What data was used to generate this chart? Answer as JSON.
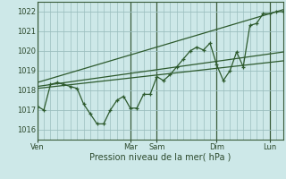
{
  "xlabel": "Pression niveau de la mer( hPa )",
  "ylim": [
    1015.5,
    1022.5
  ],
  "yticks": [
    1016,
    1017,
    1018,
    1019,
    1020,
    1021,
    1022
  ],
  "background_color": "#cde8e8",
  "grid_color": "#9bbfbf",
  "line_color": "#2d5a2d",
  "dark_vline_color": "#3a5c3a",
  "day_labels": [
    "Ven",
    "Mar",
    "Sam",
    "Dim",
    "Lun"
  ],
  "n_points": 38,
  "main_x": [
    0,
    1,
    2,
    3,
    4,
    5,
    6,
    7,
    8,
    9,
    10,
    11,
    12,
    13,
    14,
    15,
    16,
    17,
    18,
    19,
    20,
    21,
    22,
    23,
    24,
    25,
    26,
    27,
    28,
    29,
    30,
    31,
    32,
    33,
    34,
    35,
    36,
    37
  ],
  "main_y": [
    1017.2,
    1017.0,
    1018.3,
    1018.4,
    1018.3,
    1018.2,
    1018.1,
    1017.3,
    1016.8,
    1016.3,
    1016.3,
    1017.0,
    1017.5,
    1017.7,
    1017.1,
    1017.1,
    1017.8,
    1017.8,
    1018.7,
    1018.5,
    1018.8,
    1019.2,
    1019.6,
    1020.0,
    1020.2,
    1020.05,
    1020.4,
    1019.3,
    1018.5,
    1019.0,
    1019.95,
    1019.2,
    1021.3,
    1021.4,
    1021.9,
    1021.9,
    1022.0,
    1022.0
  ],
  "trend1_x": [
    0,
    37
  ],
  "trend1_y": [
    1018.4,
    1022.1
  ],
  "trend2_x": [
    0,
    37
  ],
  "trend2_y": [
    1018.2,
    1019.95
  ],
  "trend3_x": [
    0,
    37
  ],
  "trend3_y": [
    1018.1,
    1019.5
  ],
  "xlim": [
    0,
    37
  ],
  "figsize": [
    3.2,
    2.0
  ],
  "dpi": 100
}
